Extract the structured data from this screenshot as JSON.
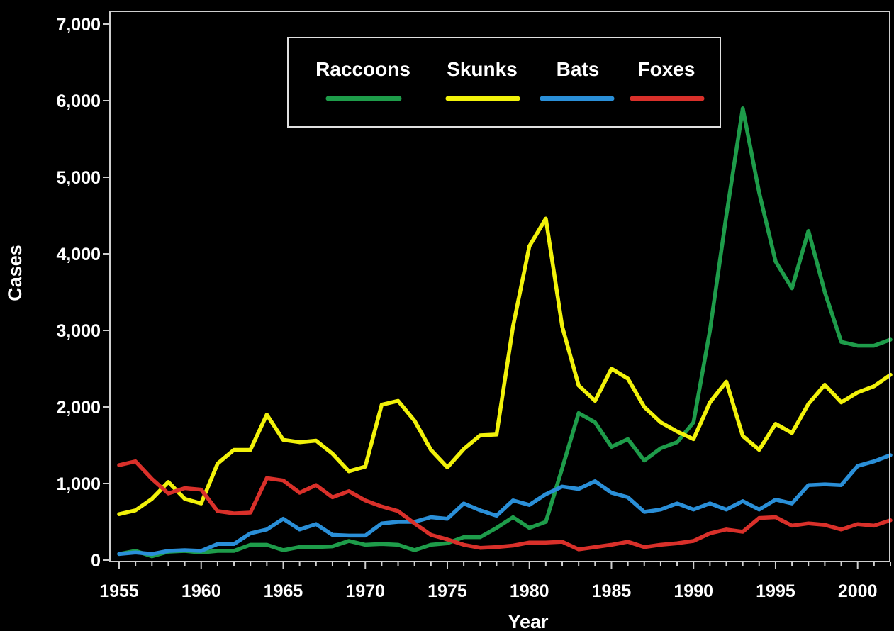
{
  "chart_data": {
    "type": "line",
    "xlabel": "Year",
    "ylabel": "Cases",
    "xlim": [
      1955,
      2002
    ],
    "ylim": [
      0,
      7000
    ],
    "grid": false,
    "legend_position": "top-center",
    "x_ticks": [
      1955,
      1960,
      1965,
      1970,
      1975,
      1980,
      1985,
      1990,
      1995,
      2000
    ],
    "y_ticks": [
      0,
      1000,
      2000,
      3000,
      4000,
      5000,
      6000,
      7000
    ],
    "y_tick_labels": [
      "0",
      "1,000",
      "2,000",
      "3,000",
      "4,000",
      "5,000",
      "6,000",
      "7,000"
    ],
    "x": [
      1955,
      1956,
      1957,
      1958,
      1959,
      1960,
      1961,
      1962,
      1963,
      1964,
      1965,
      1966,
      1967,
      1968,
      1969,
      1970,
      1971,
      1972,
      1973,
      1974,
      1975,
      1976,
      1977,
      1978,
      1979,
      1980,
      1981,
      1982,
      1983,
      1984,
      1985,
      1986,
      1987,
      1988,
      1989,
      1990,
      1991,
      1992,
      1993,
      1994,
      1995,
      1996,
      1997,
      1998,
      1999,
      2000,
      2001,
      2002
    ],
    "series": [
      {
        "name": "Raccoons",
        "color": "#1e9c4a",
        "values": [
          80,
          120,
          50,
          110,
          120,
          100,
          120,
          120,
          200,
          200,
          130,
          170,
          170,
          180,
          250,
          200,
          210,
          200,
          130,
          200,
          220,
          300,
          300,
          420,
          560,
          420,
          500,
          1200,
          1920,
          1800,
          1480,
          1580,
          1300,
          1460,
          1540,
          1800,
          3000,
          4500,
          5900,
          4800,
          3900,
          3550,
          4300,
          3500,
          2850,
          2800,
          2800,
          2880
        ]
      },
      {
        "name": "Skunks",
        "color": "#f2f20a",
        "values": [
          600,
          650,
          800,
          1020,
          800,
          740,
          1260,
          1440,
          1440,
          1900,
          1570,
          1540,
          1560,
          1390,
          1160,
          1220,
          2030,
          2080,
          1820,
          1440,
          1210,
          1450,
          1630,
          1640,
          3050,
          4100,
          4460,
          3050,
          2280,
          2080,
          2500,
          2370,
          2000,
          1800,
          1680,
          1580,
          2060,
          2330,
          1620,
          1440,
          1780,
          1660,
          2040,
          2290,
          2060,
          2190,
          2270,
          2420
        ]
      },
      {
        "name": "Bats",
        "color": "#2a8fd8",
        "values": [
          80,
          100,
          80,
          120,
          130,
          120,
          210,
          210,
          350,
          400,
          540,
          400,
          470,
          330,
          320,
          320,
          480,
          500,
          500,
          560,
          540,
          740,
          650,
          580,
          780,
          720,
          860,
          960,
          930,
          1030,
          880,
          820,
          630,
          660,
          740,
          660,
          740,
          660,
          770,
          660,
          790,
          740,
          980,
          990,
          980,
          1230,
          1290,
          1370
        ]
      },
      {
        "name": "Foxes",
        "color": "#d9302a",
        "values": [
          1240,
          1290,
          1060,
          870,
          940,
          920,
          640,
          610,
          620,
          1070,
          1040,
          880,
          980,
          820,
          900,
          780,
          700,
          640,
          480,
          330,
          270,
          200,
          160,
          170,
          190,
          230,
          230,
          240,
          140,
          170,
          200,
          240,
          170,
          200,
          220,
          250,
          350,
          400,
          370,
          550,
          560,
          450,
          480,
          460,
          400,
          470,
          450,
          520
        ]
      }
    ]
  }
}
